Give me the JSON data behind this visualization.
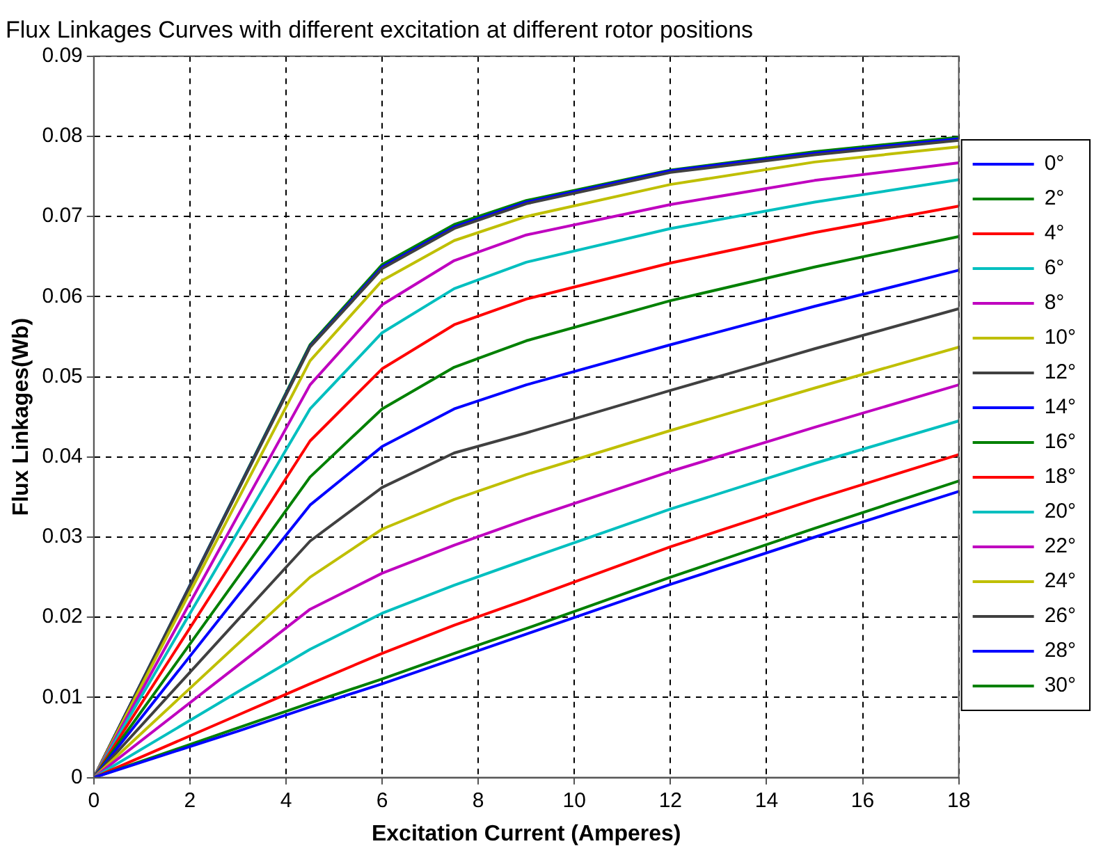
{
  "chart_data": {
    "type": "line",
    "title": "Flux Linkages Curves with different excitation at different rotor positions",
    "xlabel": "Excitation Current (Amperes)",
    "ylabel": "Flux Linkages(Wb)",
    "x": [
      0,
      3,
      4.5,
      6,
      7.5,
      9,
      12,
      15,
      18
    ],
    "xlim": [
      0,
      18
    ],
    "xticks": [
      0,
      2,
      4,
      6,
      8,
      10,
      12,
      14,
      16,
      18
    ],
    "ylim": [
      0,
      0.09
    ],
    "yticks": [
      0,
      0.01,
      0.02,
      0.03,
      0.04,
      0.05,
      0.06,
      0.07,
      0.08,
      0.09
    ],
    "grid": true,
    "legend": "right",
    "marker": "none",
    "line_style": "solid",
    "series": [
      {
        "name": "0°",
        "color": "#0000ff",
        "values": [
          0,
          0.0058,
          0.0088,
          0.0117,
          0.0148,
          0.0179,
          0.0241,
          0.03,
          0.0357
        ]
      },
      {
        "name": "2°",
        "color": "#008000",
        "values": [
          0,
          0.0062,
          0.0093,
          0.0123,
          0.0155,
          0.0186,
          0.025,
          0.0311,
          0.037
        ]
      },
      {
        "name": "4°",
        "color": "#ff0000",
        "values": [
          0,
          0.0078,
          0.0117,
          0.0155,
          0.019,
          0.0222,
          0.0288,
          0.0347,
          0.0403
        ]
      },
      {
        "name": "6°",
        "color": "#00bfbf",
        "values": [
          0,
          0.0107,
          0.016,
          0.0205,
          0.024,
          0.0272,
          0.0335,
          0.0392,
          0.0445
        ]
      },
      {
        "name": "8°",
        "color": "#bf00bf",
        "values": [
          0,
          0.014,
          0.021,
          0.0255,
          0.029,
          0.0322,
          0.0382,
          0.0437,
          0.049
        ]
      },
      {
        "name": "10°",
        "color": "#bfbf00",
        "values": [
          0,
          0.0167,
          0.025,
          0.031,
          0.0347,
          0.0378,
          0.0433,
          0.0486,
          0.0537
        ]
      },
      {
        "name": "12°",
        "color": "#404040",
        "values": [
          0,
          0.0197,
          0.0295,
          0.0362,
          0.0405,
          0.043,
          0.0483,
          0.0535,
          0.0585
        ]
      },
      {
        "name": "14°",
        "color": "#0000ff",
        "values": [
          0,
          0.0227,
          0.034,
          0.0413,
          0.046,
          0.049,
          0.054,
          0.0588,
          0.0633
        ]
      },
      {
        "name": "16°",
        "color": "#008000",
        "values": [
          0,
          0.025,
          0.0375,
          0.046,
          0.0512,
          0.0545,
          0.0595,
          0.0637,
          0.0675
        ]
      },
      {
        "name": "18°",
        "color": "#ff0000",
        "values": [
          0,
          0.028,
          0.042,
          0.051,
          0.0565,
          0.0597,
          0.0642,
          0.068,
          0.0713
        ]
      },
      {
        "name": "20°",
        "color": "#00bfbf",
        "values": [
          0,
          0.0307,
          0.046,
          0.0555,
          0.061,
          0.0643,
          0.0685,
          0.0718,
          0.0746
        ]
      },
      {
        "name": "22°",
        "color": "#bf00bf",
        "values": [
          0,
          0.0327,
          0.049,
          0.059,
          0.0645,
          0.0677,
          0.0715,
          0.0745,
          0.0767
        ]
      },
      {
        "name": "24°",
        "color": "#bfbf00",
        "values": [
          0,
          0.0347,
          0.052,
          0.062,
          0.067,
          0.07,
          0.074,
          0.0768,
          0.0787
        ]
      },
      {
        "name": "26°",
        "color": "#404040",
        "values": [
          0,
          0.0358,
          0.0537,
          0.0635,
          0.0685,
          0.0716,
          0.0755,
          0.0777,
          0.0795
        ]
      },
      {
        "name": "28°",
        "color": "#0000ff",
        "values": [
          0,
          0.0359,
          0.0538,
          0.0637,
          0.0687,
          0.0718,
          0.0757,
          0.0779,
          0.0797
        ]
      },
      {
        "name": "30°",
        "color": "#008000",
        "values": [
          0,
          0.036,
          0.054,
          0.064,
          0.069,
          0.072,
          0.0758,
          0.0781,
          0.0799
        ]
      }
    ]
  }
}
